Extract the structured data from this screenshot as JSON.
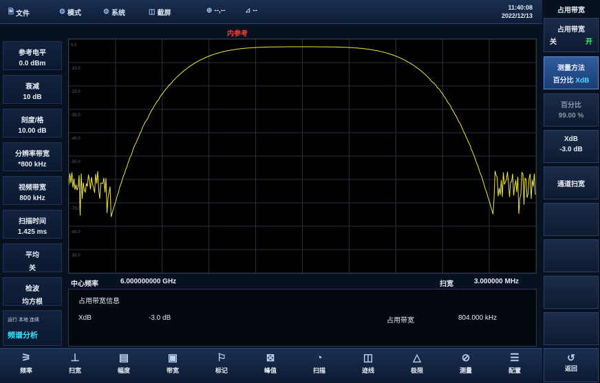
{
  "topbar": {
    "file": "文件",
    "mode": "模式",
    "system": "系统",
    "screenshot": "截屏",
    "status1": "--,--",
    "status2": "--",
    "time": "11:40:08",
    "date": "2022/12/13"
  },
  "graph": {
    "ref_label": "内参考",
    "y_ticks": [
      "0.0",
      "-10.0",
      "-20.0",
      "-30.0",
      "-40.0",
      "-50.0",
      "-60.0",
      "-70.0",
      "-80.0",
      "-90.0"
    ]
  },
  "left_panel": [
    {
      "title": "参考电平",
      "value": "0.0 dBm"
    },
    {
      "title": "衰减",
      "value": "10 dB"
    },
    {
      "title": "刻度/格",
      "value": "10.00 dB"
    },
    {
      "title": "分辨率带宽",
      "value": "*800 kHz"
    },
    {
      "title": "视频带宽",
      "value": "800 kHz"
    },
    {
      "title": "扫描时间",
      "value": "1.425 ms"
    },
    {
      "title": "平均",
      "value": "关"
    },
    {
      "title": "检波",
      "value": "均方根"
    }
  ],
  "status": {
    "line1": "运行 本地 连续",
    "mode": "频谱分析"
  },
  "freq_bar": {
    "center_label": "中心频率",
    "center_value": "6.000000000 GHz",
    "span_label": "扫宽",
    "span_value": "3.000000 MHz"
  },
  "info": {
    "title": "占用带宽信息",
    "xdb_label": "XdB",
    "xdb_value": "-3.0 dB",
    "obw_label": "占用带宽",
    "obw_value": "804.000 kHz"
  },
  "right_panel": {
    "title": "占用带宽",
    "obw_toggle": {
      "label": "占用带宽",
      "off": "关",
      "on": "开"
    },
    "method": {
      "label": "测量方法",
      "opt1": "百分比",
      "opt2": "XdB"
    },
    "percent": {
      "label": "百分比",
      "value": "99.00 %"
    },
    "xdb": {
      "label": "XdB",
      "value": "-3.0 dB"
    },
    "channel": {
      "label": "通道扫宽"
    }
  },
  "bottom_bar": [
    {
      "label": "频率",
      "icon": "freq-icon"
    },
    {
      "label": "扫宽",
      "icon": "span-icon"
    },
    {
      "label": "幅度",
      "icon": "amplitude-icon"
    },
    {
      "label": "带宽",
      "icon": "bandwidth-icon"
    },
    {
      "label": "标记",
      "icon": "marker-icon"
    },
    {
      "label": "峰值",
      "icon": "peak-icon"
    },
    {
      "label": "扫描",
      "icon": "sweep-icon"
    },
    {
      "label": "迹线",
      "icon": "trace-icon"
    },
    {
      "label": "极限",
      "icon": "limit-icon"
    },
    {
      "label": "测量",
      "icon": "measure-icon"
    },
    {
      "label": "配置",
      "icon": "config-icon"
    }
  ],
  "return_label": "返回"
}
